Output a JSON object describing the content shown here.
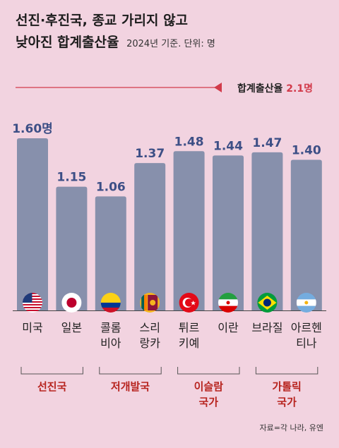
{
  "title": {
    "line1": "선진·후진국, 종교 가리지 않고",
    "line2": "낮아진 합계출산율",
    "note": "2024년 기준. 단위: 명"
  },
  "reference": {
    "label": "합계출산율",
    "value_label": "2.1명",
    "value": 2.1
  },
  "source": "자료=각 나라, 유엔",
  "colors": {
    "background": "#f2d3e0",
    "bar": "#8790ac",
    "reference_line": "#d23b4b",
    "value_text": "#3d4f86",
    "group_text": "#b7241f"
  },
  "chart_data": {
    "type": "bar",
    "title": "낮아진 합계출산율",
    "categories": [
      "미국",
      "일본",
      "콜롬비아",
      "스리랑카",
      "튀르키예",
      "이란",
      "브라질",
      "아르헨티나"
    ],
    "category_lines": [
      [
        "미국"
      ],
      [
        "일본"
      ],
      [
        "콜롬",
        "비아"
      ],
      [
        "스리",
        "랑카"
      ],
      [
        "튀르",
        "키예"
      ],
      [
        "이란"
      ],
      [
        "브라질"
      ],
      [
        "아르헨",
        "티나"
      ]
    ],
    "values": [
      1.6,
      1.15,
      1.06,
      1.37,
      1.48,
      1.44,
      1.47,
      1.4
    ],
    "value_labels": [
      "1.60명",
      "1.15",
      "1.06",
      "1.37",
      "1.48",
      "1.44",
      "1.47",
      "1.40"
    ],
    "flags": [
      "us-flag-icon",
      "japan-flag-icon",
      "colombia-flag-icon",
      "sri-lanka-flag-icon",
      "turkey-flag-icon",
      "iran-flag-icon",
      "brazil-flag-icon",
      "argentina-flag-icon"
    ],
    "groups": [
      {
        "lines": [
          "선진국"
        ],
        "from": 0,
        "to": 1
      },
      {
        "lines": [
          "저개발국"
        ],
        "from": 2,
        "to": 3
      },
      {
        "lines": [
          "이슬람",
          "국가"
        ],
        "from": 4,
        "to": 5
      },
      {
        "lines": [
          "가톨릭",
          "국가"
        ],
        "from": 6,
        "to": 7
      }
    ],
    "ylim": [
      0,
      1.6
    ],
    "xlabel": "",
    "ylabel": ""
  }
}
